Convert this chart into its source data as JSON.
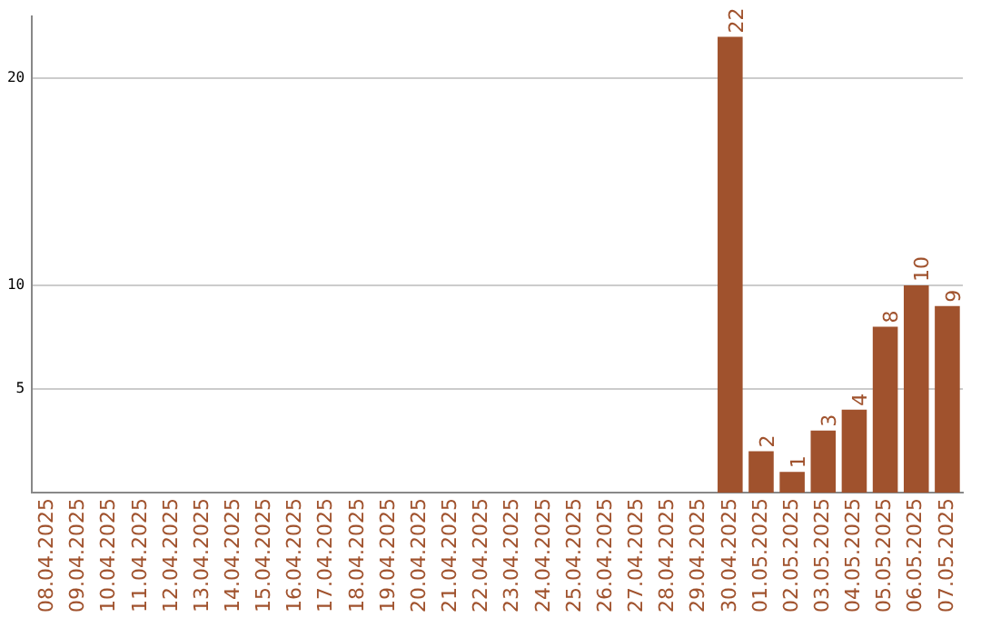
{
  "chart_data": {
    "type": "bar",
    "categories": [
      "08.04.2025",
      "09.04.2025",
      "10.04.2025",
      "11.04.2025",
      "12.04.2025",
      "13.04.2025",
      "14.04.2025",
      "15.04.2025",
      "16.04.2025",
      "17.04.2025",
      "18.04.2025",
      "19.04.2025",
      "20.04.2025",
      "21.04.2025",
      "22.04.2025",
      "23.04.2025",
      "24.04.2025",
      "25.04.2025",
      "26.04.2025",
      "27.04.2025",
      "28.04.2025",
      "29.04.2025",
      "30.04.2025",
      "01.05.2025",
      "02.05.2025",
      "03.05.2025",
      "04.05.2025",
      "05.05.2025",
      "06.05.2025",
      "07.05.2025"
    ],
    "values": [
      0,
      0,
      0,
      0,
      0,
      0,
      0,
      0,
      0,
      0,
      0,
      0,
      0,
      0,
      0,
      0,
      0,
      0,
      0,
      0,
      0,
      0,
      22,
      2,
      1,
      3,
      4,
      8,
      10,
      9
    ],
    "value_labels": [
      null,
      null,
      null,
      null,
      null,
      null,
      null,
      null,
      null,
      null,
      null,
      null,
      null,
      null,
      null,
      null,
      null,
      null,
      null,
      null,
      null,
      null,
      "22",
      "2",
      "1",
      "3",
      "4",
      "8",
      "10",
      "9"
    ],
    "color": "#a0522d",
    "ylim": [
      0,
      23
    ],
    "yticks": [
      5,
      10,
      20
    ],
    "grid": "y",
    "legend": false
  }
}
